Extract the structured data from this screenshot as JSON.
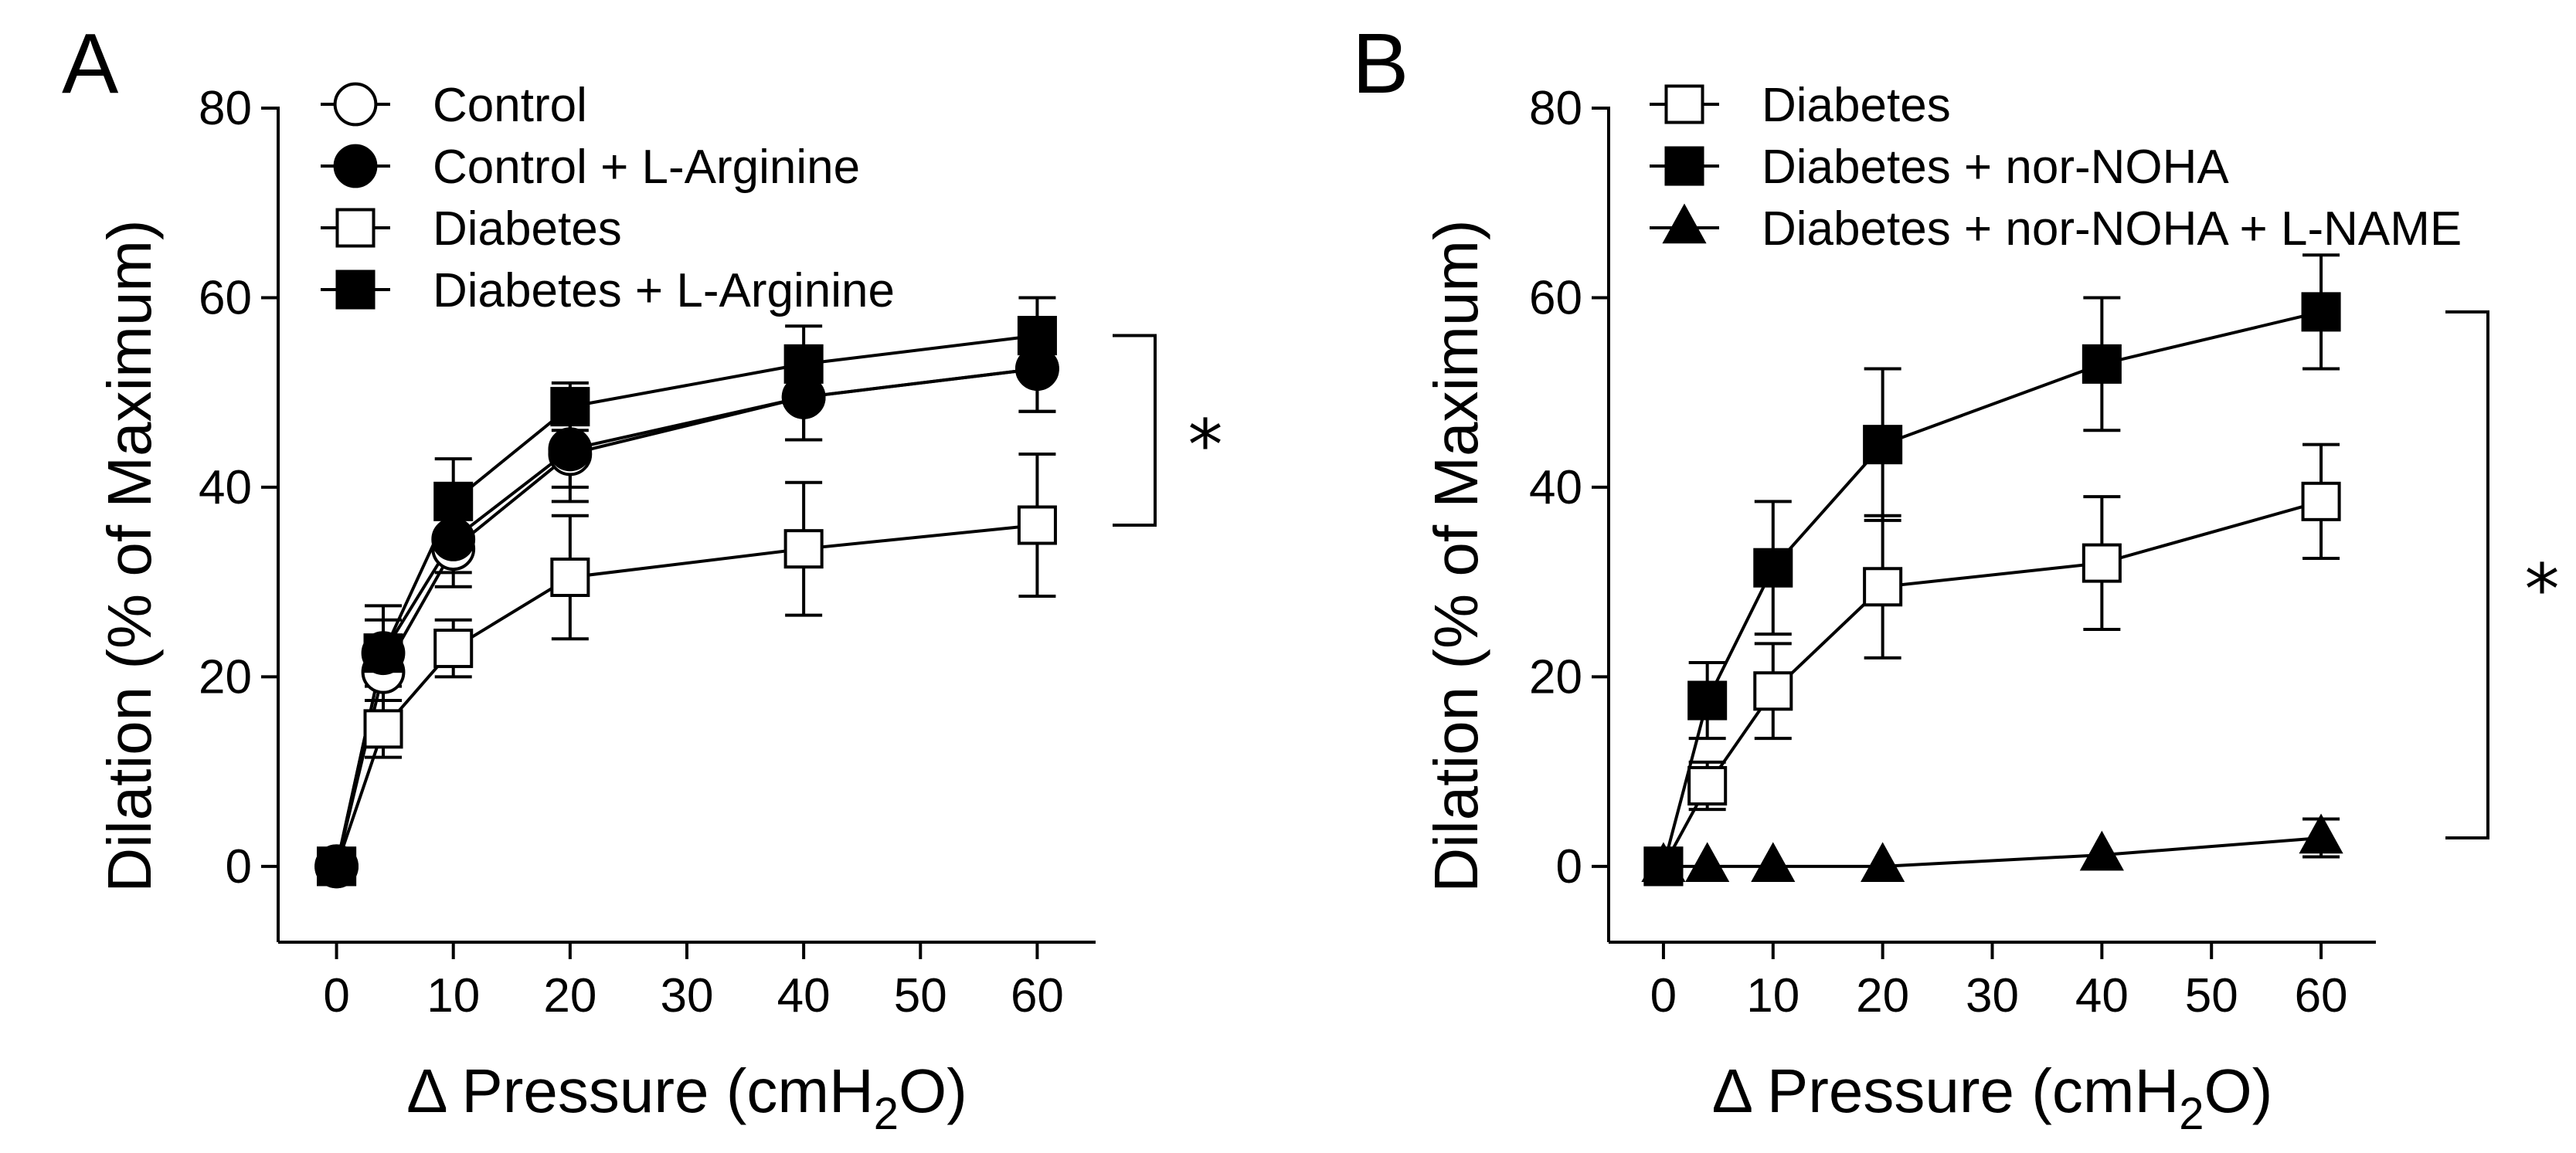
{
  "chart_data": [
    {
      "panel": "A",
      "type": "line",
      "xlabel": "Δ Pressure (cmH₂O)",
      "xlabel_parts": [
        "Δ Pressure (cmH",
        "2",
        "O)"
      ],
      "ylabel": "Dilation (% of Maximum)",
      "xlim": [
        -5,
        65
      ],
      "ylim": [
        -8,
        80
      ],
      "xticks": [
        0,
        10,
        20,
        30,
        40,
        50,
        60
      ],
      "yticks": [
        0,
        20,
        40,
        60,
        80
      ],
      "significance": "*",
      "bracket_series": [
        "Diabetes + L-Arginine",
        "Diabetes"
      ],
      "series": [
        {
          "name": "Control",
          "marker": "circle",
          "filled": false,
          "x": [
            0,
            4,
            10,
            20,
            40,
            60
          ],
          "y": [
            0,
            20.5,
            33.5,
            43.5,
            49.5,
            52.5
          ],
          "err": [
            0,
            3,
            4,
            5,
            4.5,
            4.5
          ]
        },
        {
          "name": "Control + L-Arginine",
          "marker": "circle",
          "filled": true,
          "x": [
            0,
            4,
            10,
            20,
            40,
            60
          ],
          "y": [
            0,
            22.5,
            34.5,
            44,
            49.5,
            52.5
          ],
          "err": [
            0,
            3.5,
            3.5,
            4,
            4.5,
            4.5
          ]
        },
        {
          "name": "Diabetes",
          "marker": "square",
          "filled": false,
          "x": [
            0,
            4,
            10,
            20,
            40,
            60
          ],
          "y": [
            0,
            14.5,
            23,
            30.5,
            33.5,
            36
          ],
          "err": [
            0,
            3,
            3,
            6.5,
            7,
            7.5
          ]
        },
        {
          "name": "Diabetes + L-Arginine",
          "marker": "square",
          "filled": true,
          "x": [
            0,
            4,
            10,
            20,
            40,
            60
          ],
          "y": [
            0,
            22.5,
            38.5,
            48.5,
            53,
            56
          ],
          "err": [
            0,
            5,
            4.5,
            2.5,
            4,
            4
          ]
        }
      ]
    },
    {
      "panel": "B",
      "type": "line",
      "xlabel": "Δ Pressure (cmH₂O)",
      "xlabel_parts": [
        "Δ Pressure (cmH",
        "2",
        "O)"
      ],
      "ylabel": "Dilation (% of Maximum)",
      "xlim": [
        -5,
        65
      ],
      "ylim": [
        -8,
        80
      ],
      "xticks": [
        0,
        10,
        20,
        30,
        40,
        50,
        60
      ],
      "yticks": [
        0,
        20,
        40,
        60,
        80
      ],
      "significance": "*",
      "bracket_series": [
        "Diabetes + nor-NOHA",
        "Diabetes + nor-NOHA + L-NAME"
      ],
      "series": [
        {
          "name": "Diabetes",
          "marker": "square",
          "filled": false,
          "x": [
            0,
            4,
            10,
            20,
            40,
            60
          ],
          "y": [
            0,
            8.5,
            18.5,
            29.5,
            32,
            38.5
          ],
          "err": [
            0,
            2.5,
            5,
            7.5,
            7,
            6
          ]
        },
        {
          "name": "Diabetes + nor-NOHA",
          "marker": "square",
          "filled": true,
          "x": [
            0,
            4,
            10,
            20,
            40,
            60
          ],
          "y": [
            0,
            17.5,
            31.5,
            44.5,
            53,
            58.5
          ],
          "err": [
            0,
            4,
            7,
            8,
            7,
            6
          ]
        },
        {
          "name": "Diabetes + nor-NOHA + L-NAME",
          "marker": "triangle",
          "filled": true,
          "x": [
            0,
            4,
            10,
            20,
            40,
            60
          ],
          "y": [
            0,
            0,
            0,
            0,
            1.2,
            3
          ],
          "err": [
            0,
            0,
            0,
            0,
            0,
            2
          ]
        }
      ]
    }
  ]
}
